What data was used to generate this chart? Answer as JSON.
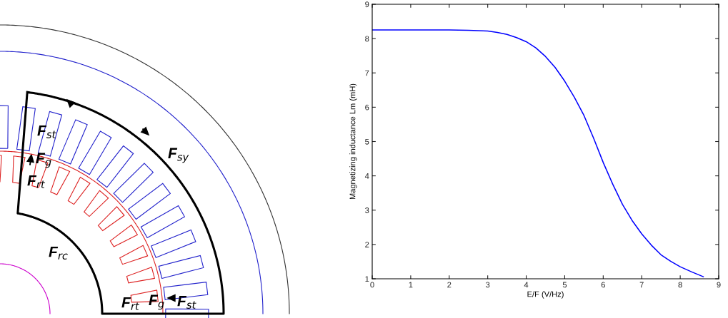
{
  "chart_data": [
    {
      "type": "other",
      "annotations": [
        "F$_{st}$",
        "F$_{g}$",
        "F$_{rt}$",
        "F$_{sy}$",
        "F$_{rc}$",
        "F$_{rt}$",
        "F$_{g}$",
        "F$_{st}$"
      ]
    },
    {
      "type": "line",
      "xlabel": "E/F (V/Hz)",
      "ylabel": "Magnetizing inductance Lm (mH)",
      "x": [
        0,
        1,
        2,
        2.5,
        3,
        3.25,
        3.5,
        3.75,
        4,
        4.25,
        4.5,
        4.75,
        5,
        5.25,
        5.5,
        5.75,
        6,
        6.25,
        6.5,
        6.75,
        7,
        7.25,
        7.5,
        7.75,
        8,
        8.3,
        8.6
      ],
      "series": [
        {
          "color": "#0000ff",
          "values": [
            8.25,
            8.25,
            8.25,
            8.24,
            8.22,
            8.18,
            8.12,
            8.03,
            7.91,
            7.73,
            7.48,
            7.16,
            6.76,
            6.29,
            5.76,
            5.1,
            4.39,
            3.75,
            3.17,
            2.7,
            2.31,
            1.98,
            1.7,
            1.51,
            1.35,
            1.2,
            1.06
          ]
        }
      ],
      "xlim": [
        0,
        9
      ],
      "ylim": [
        1,
        9
      ],
      "xticks": [
        0,
        1,
        2,
        3,
        4,
        5,
        6,
        7,
        8,
        9
      ],
      "yticks": [
        1,
        2,
        3,
        4,
        5,
        6,
        7,
        8,
        9
      ],
      "grid": false,
      "marker": "none",
      "line_style": "solid"
    }
  ]
}
